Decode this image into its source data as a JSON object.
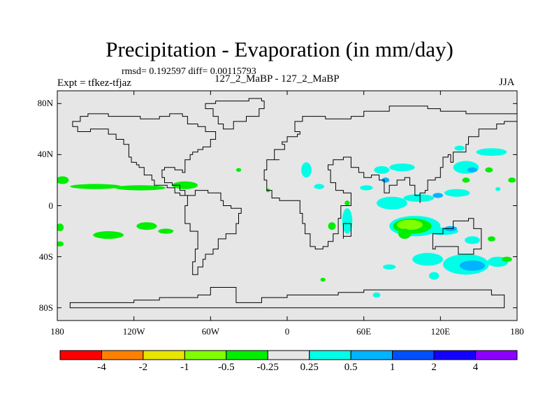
{
  "chart": {
    "title": "Precipitation - Evaporation (in mm/day)",
    "stats": "rmsd= 0.192597 diff= 0.00115793",
    "experiment": "Expt = tfkez-tfjaz",
    "subtitle": "127_2_MaBP - 127_2_MaBP",
    "season": "JJA"
  },
  "chart_data": {
    "type": "heatmap",
    "projection": "cylindrical-equidistant",
    "x_range": [
      -180,
      180
    ],
    "y_range": [
      -90,
      90
    ],
    "x_ticks": [
      {
        "value": -180,
        "label": "180"
      },
      {
        "value": -120,
        "label": "120W"
      },
      {
        "value": -60,
        "label": "60W"
      },
      {
        "value": 0,
        "label": "0"
      },
      {
        "value": 60,
        "label": "60E"
      },
      {
        "value": 120,
        "label": "120E"
      },
      {
        "value": 180,
        "label": "180"
      }
    ],
    "y_ticks": [
      {
        "value": 80,
        "label": "80N"
      },
      {
        "value": 40,
        "label": "40N"
      },
      {
        "value": 0,
        "label": "0"
      },
      {
        "value": -40,
        "label": "40S"
      },
      {
        "value": -80,
        "label": "80S"
      }
    ],
    "colorbar": {
      "levels": [
        "-4",
        "-2",
        "-1",
        "-0.5",
        "-0.25",
        "0.25",
        "0.5",
        "1",
        "2",
        "4"
      ],
      "colors": [
        "#ff0000",
        "#ff8000",
        "#e6e600",
        "#80ff00",
        "#00ee00",
        "#e6e6e6",
        "#00ffe6",
        "#00b4ff",
        "#0050ff",
        "#1400ff",
        "#8c00ff"
      ]
    },
    "background_color": "#e6e6e6",
    "contour_regions": [
      {
        "lon": -176,
        "lat": 20,
        "rx": 5,
        "ry": 3,
        "level": 4
      },
      {
        "lon": -150,
        "lat": 15,
        "rx": 20,
        "ry": 2,
        "level": 4
      },
      {
        "lon": -115,
        "lat": 14,
        "rx": 20,
        "ry": 2,
        "level": 4
      },
      {
        "lon": -80,
        "lat": 16,
        "rx": 10,
        "ry": 3,
        "level": 4
      },
      {
        "lon": -178,
        "lat": -17,
        "rx": 3,
        "ry": 3,
        "level": 4
      },
      {
        "lon": -178,
        "lat": -30,
        "rx": 3,
        "ry": 2,
        "level": 4
      },
      {
        "lon": -140,
        "lat": -23,
        "rx": 12,
        "ry": 3,
        "level": 4
      },
      {
        "lon": -110,
        "lat": -16,
        "rx": 8,
        "ry": 3,
        "level": 4
      },
      {
        "lon": -95,
        "lat": -20,
        "rx": 6,
        "ry": 2,
        "level": 4
      },
      {
        "lon": -38,
        "lat": 28,
        "rx": 2,
        "ry": 1.5,
        "level": 4
      },
      {
        "lon": -15,
        "lat": 12,
        "rx": 1.5,
        "ry": 1.5,
        "level": 4
      },
      {
        "lon": 15,
        "lat": 28,
        "rx": 4,
        "ry": 6,
        "level": 6
      },
      {
        "lon": 25,
        "lat": 15,
        "rx": 4,
        "ry": 2,
        "level": 6
      },
      {
        "lon": 47,
        "lat": -12,
        "rx": 4,
        "ry": 10,
        "level": 6
      },
      {
        "lon": 47,
        "lat": 2,
        "rx": 2,
        "ry": 2,
        "level": 4
      },
      {
        "lon": 35,
        "lat": -16,
        "rx": 3,
        "ry": 3,
        "level": 4
      },
      {
        "lon": 28,
        "lat": -58,
        "rx": 2,
        "ry": 1.5,
        "level": 4
      },
      {
        "lon": 74,
        "lat": 28,
        "rx": 6,
        "ry": 3,
        "level": 6
      },
      {
        "lon": 90,
        "lat": 30,
        "rx": 10,
        "ry": 3,
        "level": 6
      },
      {
        "lon": 62,
        "lat": 14,
        "rx": 5,
        "ry": 2,
        "level": 6
      },
      {
        "lon": 77,
        "lat": 20,
        "rx": 3,
        "ry": 2,
        "level": 7
      },
      {
        "lon": 82,
        "lat": 2,
        "rx": 12,
        "ry": 5,
        "level": 6
      },
      {
        "lon": 103,
        "lat": 6,
        "rx": 12,
        "ry": 3,
        "level": 6
      },
      {
        "lon": 100,
        "lat": -16,
        "rx": 20,
        "ry": 8,
        "level": 6
      },
      {
        "lon": 98,
        "lat": -16,
        "rx": 15,
        "ry": 6,
        "level": 4
      },
      {
        "lon": 96,
        "lat": -15,
        "rx": 10,
        "ry": 4,
        "level": 3
      },
      {
        "lon": 92,
        "lat": -22,
        "rx": 5,
        "ry": 4,
        "level": 4
      },
      {
        "lon": 122,
        "lat": -20,
        "rx": 12,
        "ry": 3,
        "level": 6
      },
      {
        "lon": 128,
        "lat": -18,
        "rx": 5,
        "ry": 2,
        "level": 7
      },
      {
        "lon": 145,
        "lat": -27,
        "rx": 6,
        "ry": 3,
        "level": 6
      },
      {
        "lon": 133,
        "lat": 10,
        "rx": 10,
        "ry": 3,
        "level": 6
      },
      {
        "lon": 118,
        "lat": 8,
        "rx": 4,
        "ry": 2,
        "level": 7
      },
      {
        "lon": 110,
        "lat": -42,
        "rx": 12,
        "ry": 5,
        "level": 6
      },
      {
        "lon": 140,
        "lat": -46,
        "rx": 18,
        "ry": 8,
        "level": 6
      },
      {
        "lon": 145,
        "lat": -47,
        "rx": 10,
        "ry": 4,
        "level": 7
      },
      {
        "lon": 165,
        "lat": -44,
        "rx": 8,
        "ry": 4,
        "level": 6
      },
      {
        "lon": 80,
        "lat": -48,
        "rx": 5,
        "ry": 2,
        "level": 6
      },
      {
        "lon": 115,
        "lat": -55,
        "rx": 4,
        "ry": 3,
        "level": 6
      },
      {
        "lon": 70,
        "lat": -70,
        "rx": 3,
        "ry": 2,
        "level": 6
      },
      {
        "lon": 140,
        "lat": 30,
        "rx": 10,
        "ry": 5,
        "level": 6
      },
      {
        "lon": 145,
        "lat": 28,
        "rx": 4,
        "ry": 2,
        "level": 7
      },
      {
        "lon": 160,
        "lat": 42,
        "rx": 12,
        "ry": 3,
        "level": 6
      },
      {
        "lon": 135,
        "lat": 45,
        "rx": 4,
        "ry": 2,
        "level": 6
      },
      {
        "lon": 140,
        "lat": 20,
        "rx": 3,
        "ry": 2,
        "level": 4
      },
      {
        "lon": 158,
        "lat": 28,
        "rx": 3,
        "ry": 2,
        "level": 4
      },
      {
        "lon": 176,
        "lat": 20,
        "rx": 3,
        "ry": 2,
        "level": 4
      },
      {
        "lon": 165,
        "lat": 13,
        "rx": 2,
        "ry": 1.5,
        "level": 6
      },
      {
        "lon": 172,
        "lat": -42,
        "rx": 4,
        "ry": 2,
        "level": 4
      },
      {
        "lon": 160,
        "lat": -26,
        "rx": 3,
        "ry": 2,
        "level": 4
      }
    ],
    "continent_outlines": [
      {
        "name": "north-america",
        "points": [
          [
            -168,
            66
          ],
          [
            -162,
            70
          ],
          [
            -156,
            72
          ],
          [
            -140,
            70
          ],
          [
            -128,
            70
          ],
          [
            -115,
            68
          ],
          [
            -100,
            70
          ],
          [
            -92,
            72
          ],
          [
            -82,
            70
          ],
          [
            -78,
            64
          ],
          [
            -70,
            62
          ],
          [
            -64,
            58
          ],
          [
            -56,
            52
          ],
          [
            -60,
            46
          ],
          [
            -66,
            44
          ],
          [
            -70,
            42
          ],
          [
            -74,
            40
          ],
          [
            -76,
            36
          ],
          [
            -80,
            32
          ],
          [
            -80,
            26
          ],
          [
            -82,
            28
          ],
          [
            -88,
            30
          ],
          [
            -96,
            28
          ],
          [
            -98,
            22
          ],
          [
            -96,
            18
          ],
          [
            -90,
            16
          ],
          [
            -84,
            12
          ],
          [
            -80,
            8
          ],
          [
            -78,
            8
          ],
          [
            -84,
            10
          ],
          [
            -88,
            14
          ],
          [
            -94,
            16
          ],
          [
            -104,
            20
          ],
          [
            -106,
            24
          ],
          [
            -112,
            30
          ],
          [
            -116,
            32
          ],
          [
            -118,
            34
          ],
          [
            -122,
            38
          ],
          [
            -124,
            42
          ],
          [
            -124,
            48
          ],
          [
            -128,
            52
          ],
          [
            -134,
            56
          ],
          [
            -140,
            60
          ],
          [
            -148,
            60
          ],
          [
            -154,
            58
          ],
          [
            -162,
            58
          ],
          [
            -164,
            62
          ],
          [
            -168,
            66
          ]
        ]
      },
      {
        "name": "greenland",
        "points": [
          [
            -56,
            82
          ],
          [
            -30,
            84
          ],
          [
            -20,
            82
          ],
          [
            -18,
            76
          ],
          [
            -22,
            70
          ],
          [
            -32,
            66
          ],
          [
            -42,
            60
          ],
          [
            -50,
            64
          ],
          [
            -54,
            70
          ],
          [
            -58,
            76
          ],
          [
            -64,
            80
          ],
          [
            -56,
            82
          ]
        ]
      },
      {
        "name": "south-america",
        "points": [
          [
            -78,
            8
          ],
          [
            -72,
            12
          ],
          [
            -62,
            10
          ],
          [
            -52,
            4
          ],
          [
            -50,
            0
          ],
          [
            -44,
            -2
          ],
          [
            -36,
            -6
          ],
          [
            -38,
            -14
          ],
          [
            -40,
            -22
          ],
          [
            -48,
            -26
          ],
          [
            -54,
            -34
          ],
          [
            -58,
            -38
          ],
          [
            -64,
            -42
          ],
          [
            -66,
            -48
          ],
          [
            -70,
            -54
          ],
          [
            -74,
            -52
          ],
          [
            -74,
            -44
          ],
          [
            -72,
            -34
          ],
          [
            -70,
            -20
          ],
          [
            -76,
            -14
          ],
          [
            -80,
            -6
          ],
          [
            -80,
            0
          ],
          [
            -78,
            8
          ]
        ]
      },
      {
        "name": "eurasia-africa",
        "points": [
          [
            -10,
            36
          ],
          [
            -6,
            36
          ],
          [
            -16,
            28
          ],
          [
            -18,
            20
          ],
          [
            -16,
            12
          ],
          [
            -12,
            6
          ],
          [
            -6,
            4
          ],
          [
            6,
            4
          ],
          [
            10,
            2
          ],
          [
            10,
            -6
          ],
          [
            12,
            -14
          ],
          [
            14,
            -22
          ],
          [
            18,
            -32
          ],
          [
            22,
            -34
          ],
          [
            28,
            -32
          ],
          [
            32,
            -28
          ],
          [
            36,
            -22
          ],
          [
            40,
            -16
          ],
          [
            40,
            -10
          ],
          [
            42,
            0
          ],
          [
            50,
            10
          ],
          [
            44,
            12
          ],
          [
            38,
            18
          ],
          [
            34,
            28
          ],
          [
            32,
            32
          ],
          [
            36,
            36
          ],
          [
            44,
            38
          ],
          [
            50,
            30
          ],
          [
            56,
            26
          ],
          [
            60,
            22
          ],
          [
            66,
            24
          ],
          [
            72,
            20
          ],
          [
            76,
            10
          ],
          [
            80,
            12
          ],
          [
            80,
            16
          ],
          [
            86,
            20
          ],
          [
            92,
            22
          ],
          [
            96,
            16
          ],
          [
            100,
            8
          ],
          [
            104,
            2
          ],
          [
            104,
            10
          ],
          [
            108,
            12
          ],
          [
            110,
            20
          ],
          [
            116,
            22
          ],
          [
            120,
            30
          ],
          [
            122,
            38
          ],
          [
            126,
            40
          ],
          [
            128,
            34
          ],
          [
            130,
            42
          ],
          [
            140,
            48
          ],
          [
            142,
            54
          ],
          [
            150,
            60
          ],
          [
            160,
            60
          ],
          [
            164,
            64
          ],
          [
            170,
            66
          ],
          [
            180,
            68
          ],
          [
            180,
            72
          ],
          [
            160,
            72
          ],
          [
            140,
            74
          ],
          [
            120,
            76
          ],
          [
            110,
            78
          ],
          [
            100,
            78
          ],
          [
            80,
            74
          ],
          [
            70,
            74
          ],
          [
            60,
            70
          ],
          [
            50,
            68
          ],
          [
            42,
            68
          ],
          [
            30,
            70
          ],
          [
            20,
            70
          ],
          [
            12,
            66
          ],
          [
            6,
            62
          ],
          [
            6,
            58
          ],
          [
            10,
            56
          ],
          [
            8,
            54
          ],
          [
            0,
            50
          ],
          [
            -4,
            48
          ],
          [
            -2,
            44
          ],
          [
            -8,
            44
          ],
          [
            -10,
            36
          ]
        ]
      },
      {
        "name": "madagascar",
        "points": [
          [
            44,
            -14
          ],
          [
            50,
            -14
          ],
          [
            50,
            -24
          ],
          [
            44,
            -26
          ],
          [
            44,
            -14
          ]
        ]
      },
      {
        "name": "australia",
        "points": [
          [
            114,
            -22
          ],
          [
            122,
            -18
          ],
          [
            130,
            -12
          ],
          [
            136,
            -12
          ],
          [
            142,
            -10
          ],
          [
            146,
            -18
          ],
          [
            152,
            -26
          ],
          [
            152,
            -34
          ],
          [
            146,
            -38
          ],
          [
            140,
            -38
          ],
          [
            134,
            -32
          ],
          [
            128,
            -32
          ],
          [
            116,
            -34
          ],
          [
            114,
            -28
          ],
          [
            114,
            -22
          ]
        ]
      },
      {
        "name": "antarctica",
        "points": [
          [
            -60,
            -64
          ],
          [
            -40,
            -76
          ],
          [
            -20,
            -72
          ],
          [
            0,
            -70
          ],
          [
            20,
            -70
          ],
          [
            40,
            -68
          ],
          [
            60,
            -66
          ],
          [
            80,
            -66
          ],
          [
            100,
            -66
          ],
          [
            120,
            -66
          ],
          [
            140,
            -66
          ],
          [
            160,
            -70
          ],
          [
            170,
            -76
          ],
          [
            170,
            -80
          ],
          [
            -170,
            -80
          ],
          [
            -170,
            -76
          ],
          [
            -150,
            -76
          ],
          [
            -120,
            -74
          ],
          [
            -100,
            -72
          ],
          [
            -80,
            -72
          ],
          [
            -70,
            -70
          ],
          [
            -60,
            -64
          ]
        ]
      }
    ]
  }
}
